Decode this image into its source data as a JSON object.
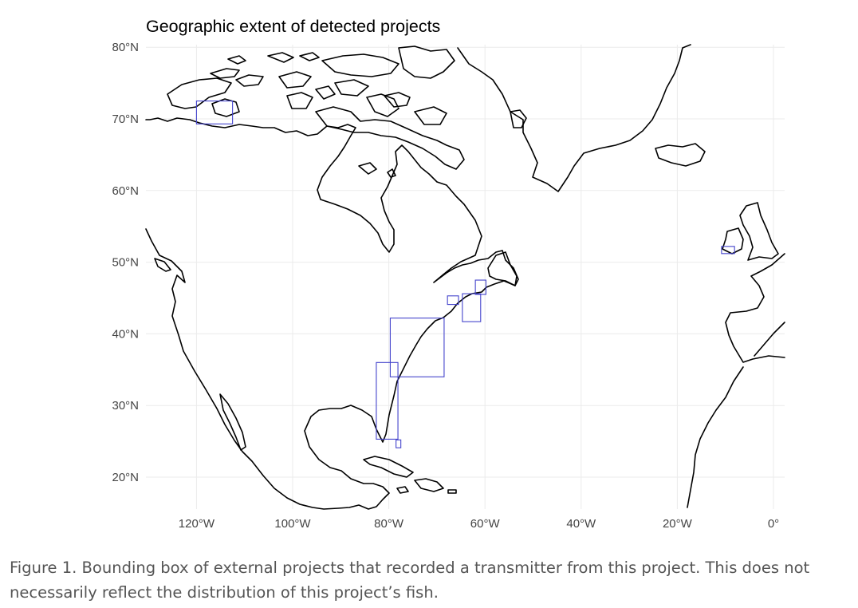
{
  "map": {
    "title": "Geographic extent of detected projects",
    "x_axis": {
      "ticks": [
        {
          "value": -120,
          "label": "120°W"
        },
        {
          "value": -100,
          "label": "100°W"
        },
        {
          "value": -80,
          "label": "80°W"
        },
        {
          "value": -60,
          "label": "60°W"
        },
        {
          "value": -40,
          "label": "40°W"
        },
        {
          "value": -20,
          "label": "20°W"
        },
        {
          "value": 0,
          "label": "0°"
        }
      ]
    },
    "y_axis": {
      "ticks": [
        {
          "value": 80,
          "label": "80°N"
        },
        {
          "value": 70,
          "label": "70°N"
        },
        {
          "value": 60,
          "label": "60°N"
        },
        {
          "value": 50,
          "label": "50°N"
        },
        {
          "value": 40,
          "label": "40°N"
        },
        {
          "value": 30,
          "label": "30°N"
        },
        {
          "value": 20,
          "label": "20°N"
        }
      ]
    },
    "bounding_boxes": [
      {
        "lon_min": -120,
        "lon_max": -112.5,
        "lat_min": 69.3,
        "lat_max": 72.5
      },
      {
        "lon_min": -79.7,
        "lon_max": -68.5,
        "lat_min": 34,
        "lat_max": 42.2
      },
      {
        "lon_min": -82.6,
        "lon_max": -78.1,
        "lat_min": 25.3,
        "lat_max": 36
      },
      {
        "lon_min": -78.5,
        "lon_max": -77.5,
        "lat_min": 24.1,
        "lat_max": 25.2
      },
      {
        "lon_min": -64.7,
        "lon_max": -60.9,
        "lat_min": 41.7,
        "lat_max": 45.6
      },
      {
        "lon_min": -67.8,
        "lon_max": -65.5,
        "lat_min": 44.1,
        "lat_max": 45.3
      },
      {
        "lon_min": -62,
        "lon_max": -59.8,
        "lat_min": 45.5,
        "lat_max": 47.5
      },
      {
        "lon_min": -10.8,
        "lon_max": -8.1,
        "lat_min": 51.2,
        "lat_max": 52.2
      }
    ]
  },
  "caption": "Figure 1. Bounding box of external projects that recorded a transmitter from this project. This does not necessarily reflect the distribution of this project’s fish."
}
